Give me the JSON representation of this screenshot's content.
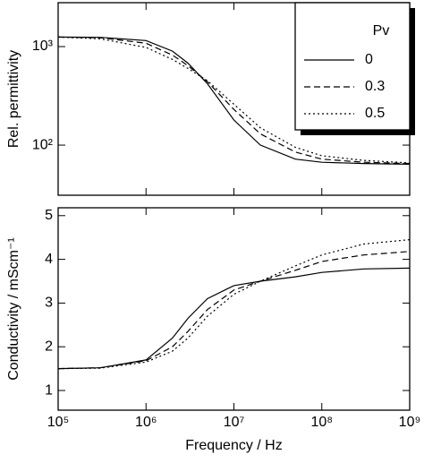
{
  "chart_data": [
    {
      "type": "line",
      "ylabel": "Rel. permittivity",
      "xscale": "log",
      "yscale": "log",
      "xlim": [
        100000,
        1000000000
      ],
      "ylim": [
        31,
        2790
      ],
      "yticks": [
        {
          "value": 100,
          "label": "10²"
        },
        {
          "value": 1000,
          "label": "10³"
        }
      ],
      "legend": {
        "title": "Pv",
        "corner": "upper right"
      },
      "x": [
        100000,
        300000,
        1000000,
        2000000,
        3000000,
        5000000,
        10000000,
        20000000,
        50000000,
        100000000,
        300000000,
        1000000000
      ],
      "series": [
        {
          "name": "0",
          "color": "#000000",
          "dash": "solid",
          "values": [
            1250,
            1240,
            1150,
            900,
            680,
            420,
            180,
            100,
            72,
            67,
            65,
            64
          ]
        },
        {
          "name": "0.3",
          "color": "#000000",
          "dash": "dashed",
          "values": [
            1250,
            1230,
            1080,
            820,
            640,
            440,
            230,
            130,
            85,
            72,
            67,
            65
          ]
        },
        {
          "name": "0.5",
          "color": "#000000",
          "dash": "dotted",
          "values": [
            1250,
            1200,
            980,
            740,
            600,
            450,
            260,
            150,
            95,
            78,
            70,
            66
          ]
        }
      ]
    },
    {
      "type": "line",
      "ylabel": "Conductivity / mScm⁻¹",
      "xlabel": "Frequency / Hz",
      "xscale": "log",
      "xlim": [
        100000,
        1000000000
      ],
      "ylim": [
        0.55,
        5.18
      ],
      "xticks": [
        {
          "value": 100000,
          "label": "10⁵"
        },
        {
          "value": 1000000,
          "label": "10⁶"
        },
        {
          "value": 10000000,
          "label": "10⁷"
        },
        {
          "value": 100000000,
          "label": "10⁸"
        },
        {
          "value": 1000000000,
          "label": "10⁹"
        }
      ],
      "yticks": [
        1,
        2,
        3,
        4,
        5
      ],
      "x": [
        100000,
        300000,
        1000000,
        2000000,
        3000000,
        5000000,
        10000000,
        20000000,
        50000000,
        100000000,
        300000000,
        1000000000
      ],
      "series": [
        {
          "name": "0",
          "color": "#000000",
          "dash": "solid",
          "values": [
            1.5,
            1.52,
            1.7,
            2.2,
            2.65,
            3.1,
            3.4,
            3.5,
            3.6,
            3.7,
            3.78,
            3.8
          ]
        },
        {
          "name": "0.3",
          "color": "#000000",
          "dash": "dashed",
          "values": [
            1.5,
            1.52,
            1.68,
            2.0,
            2.35,
            2.85,
            3.3,
            3.5,
            3.75,
            3.95,
            4.1,
            4.18
          ]
        },
        {
          "name": "0.5",
          "color": "#000000",
          "dash": "dotted",
          "values": [
            1.5,
            1.51,
            1.65,
            1.9,
            2.2,
            2.7,
            3.2,
            3.5,
            3.85,
            4.1,
            4.35,
            4.45
          ]
        }
      ]
    }
  ]
}
